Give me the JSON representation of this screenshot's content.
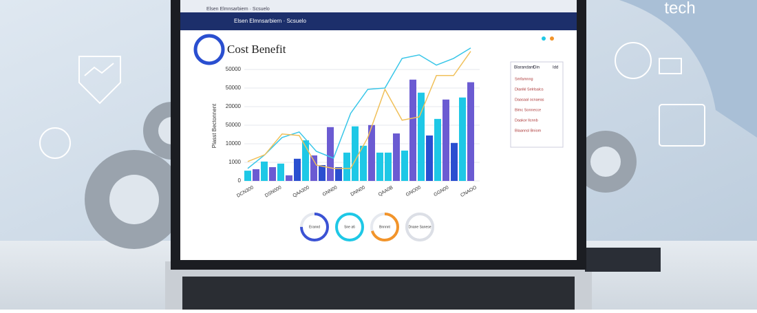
{
  "ui": {
    "brand": "tech",
    "browser_url": "Elsen Elmnsarbiern · Scsuelo",
    "page_title": "Cost Benefit",
    "table": {
      "header": [
        "Blarandant",
        "Din",
        "Idd"
      ],
      "rows": [
        "Smfamnng",
        "Dlanlkl Selrlsalcs",
        "Daasaal ocnaeas",
        "Blmc Sonnecce",
        "Daakor llcnnb",
        "Blaannsl Bniom"
      ]
    },
    "donuts": [
      {
        "label": "Erannd",
        "value": 75,
        "color": "#3b52d4"
      },
      {
        "label": "Sne a6",
        "value": 100,
        "color": "#1ec8e6"
      },
      {
        "label": "Bnnnnt",
        "value": 70,
        "color": "#f2942a"
      },
      {
        "label": "Dnane Sanese",
        "value": 100,
        "color": "#dcdfe6"
      }
    ]
  },
  "chart_data": {
    "type": "bar",
    "y_label": "Plasst Bectonnent",
    "y_labels": [
      "0",
      "1000",
      "10000",
      "50000",
      "20000",
      "50000",
      "50000"
    ],
    "x_labels": [
      "DCN300",
      "DSN000",
      "QAA300",
      "GNN00",
      "DNN00",
      "QAA0B",
      "GNO00",
      "GGN00",
      "CNAOO"
    ],
    "ylim": [
      0,
      75000
    ],
    "values": [
      5500,
      6300,
      10400,
      7400,
      9300,
      3000,
      11900,
      21800,
      13700,
      8500,
      28900,
      7400,
      15200,
      29300,
      18900,
      30000,
      15200,
      15200,
      25500,
      16300,
      54400,
      47400,
      24400,
      33300,
      43700,
      20400,
      44800,
      53000
    ],
    "colors": [
      "#1ec8e6",
      "#6b5bd2",
      "#1ec8e6",
      "#6b5bd2",
      "#1ec8e6",
      "#6b5bd2",
      "#2a4fd0",
      "#1ec8e6",
      "#6b5bd2",
      "#2a4fd0",
      "#6b5bd2",
      "#2a4fd0",
      "#1ec8e6",
      "#1ec8e6",
      "#1ec8e6",
      "#6b5bd2",
      "#1ec8e6",
      "#1ec8e6",
      "#6b5bd2",
      "#1ec8e6",
      "#6b5bd2",
      "#1ec8e6",
      "#2a4fd0",
      "#1ec8e6",
      "#6b5bd2",
      "#2a4fd0",
      "#1ec8e6",
      "#6b5bd2"
    ],
    "lines": [
      {
        "color": "#38c6e8",
        "values": [
          6700,
          14100,
          23300,
          26300,
          15900,
          12200,
          36300,
          49200,
          49900,
          65800,
          67700,
          62200,
          65800,
          71400
        ]
      },
      {
        "color": "#f0c05a",
        "values": [
          10400,
          14100,
          25200,
          24400,
          8500,
          6700,
          6700,
          23300,
          49200,
          32600,
          34400,
          56600,
          56600,
          69600
        ]
      }
    ]
  }
}
